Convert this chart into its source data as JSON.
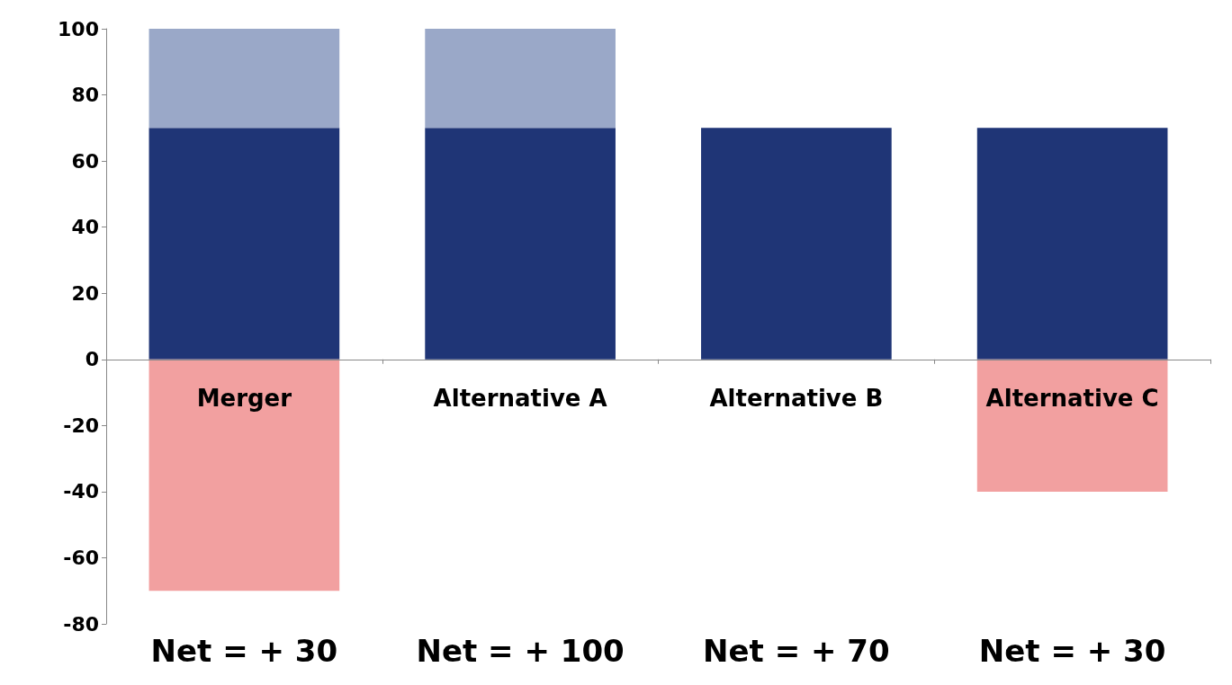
{
  "chart_data": {
    "type": "bar",
    "stacked": true,
    "categories": [
      "Merger",
      "Alternative A",
      "Alternative B",
      "Alternative C"
    ],
    "series": [
      {
        "color": "#1f3576",
        "values": [
          70,
          70,
          70,
          70
        ]
      },
      {
        "color": "#9aa8c8",
        "values": [
          30,
          30,
          null,
          null
        ]
      },
      {
        "color": "#f2a0a0",
        "values": [
          -70,
          null,
          null,
          -40
        ]
      }
    ],
    "ylim": [
      -80,
      100
    ],
    "yticks": [
      -80,
      -60,
      -40,
      -20,
      0,
      20,
      40,
      60,
      80,
      100
    ],
    "annotations": [
      "Net = + 30",
      "Net = + 100",
      "Net = + 70",
      "Net = + 30"
    ]
  }
}
